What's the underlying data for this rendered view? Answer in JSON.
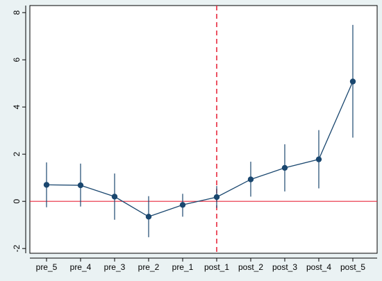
{
  "chart_data": {
    "type": "line",
    "title": "",
    "xlabel": "",
    "ylabel": "",
    "categories": [
      "pre_5",
      "pre_4",
      "pre_3",
      "pre_2",
      "pre_1",
      "post_1",
      "post_2",
      "post_3",
      "post_4",
      "post_5"
    ],
    "series": [
      {
        "values": [
          0.7,
          0.68,
          0.2,
          -0.65,
          -0.15,
          0.18,
          0.93,
          1.42,
          1.78,
          5.08
        ],
        "ci_lower": [
          -0.25,
          -0.22,
          -0.78,
          -1.52,
          -0.65,
          -0.28,
          0.2,
          0.42,
          0.55,
          2.7
        ],
        "ci_upper": [
          1.65,
          1.6,
          1.18,
          0.22,
          0.32,
          0.65,
          1.68,
          2.42,
          3.02,
          7.48
        ]
      }
    ],
    "ylim": [
      -2.2,
      8.3
    ],
    "yticks": [
      -2,
      0,
      2,
      4,
      6,
      8
    ],
    "ytick_labels": [
      "-2",
      "0",
      "2",
      "4",
      "6",
      "8"
    ],
    "reference_lines": {
      "horizontal_y": 0,
      "vertical_category": "post_1"
    },
    "grid": false,
    "legend": "none",
    "colors": {
      "background_outer": "#eaf2f3",
      "plot_background": "#ffffff",
      "series": "#1a476f",
      "reference": "#e8283c",
      "axis": "#000000"
    }
  }
}
